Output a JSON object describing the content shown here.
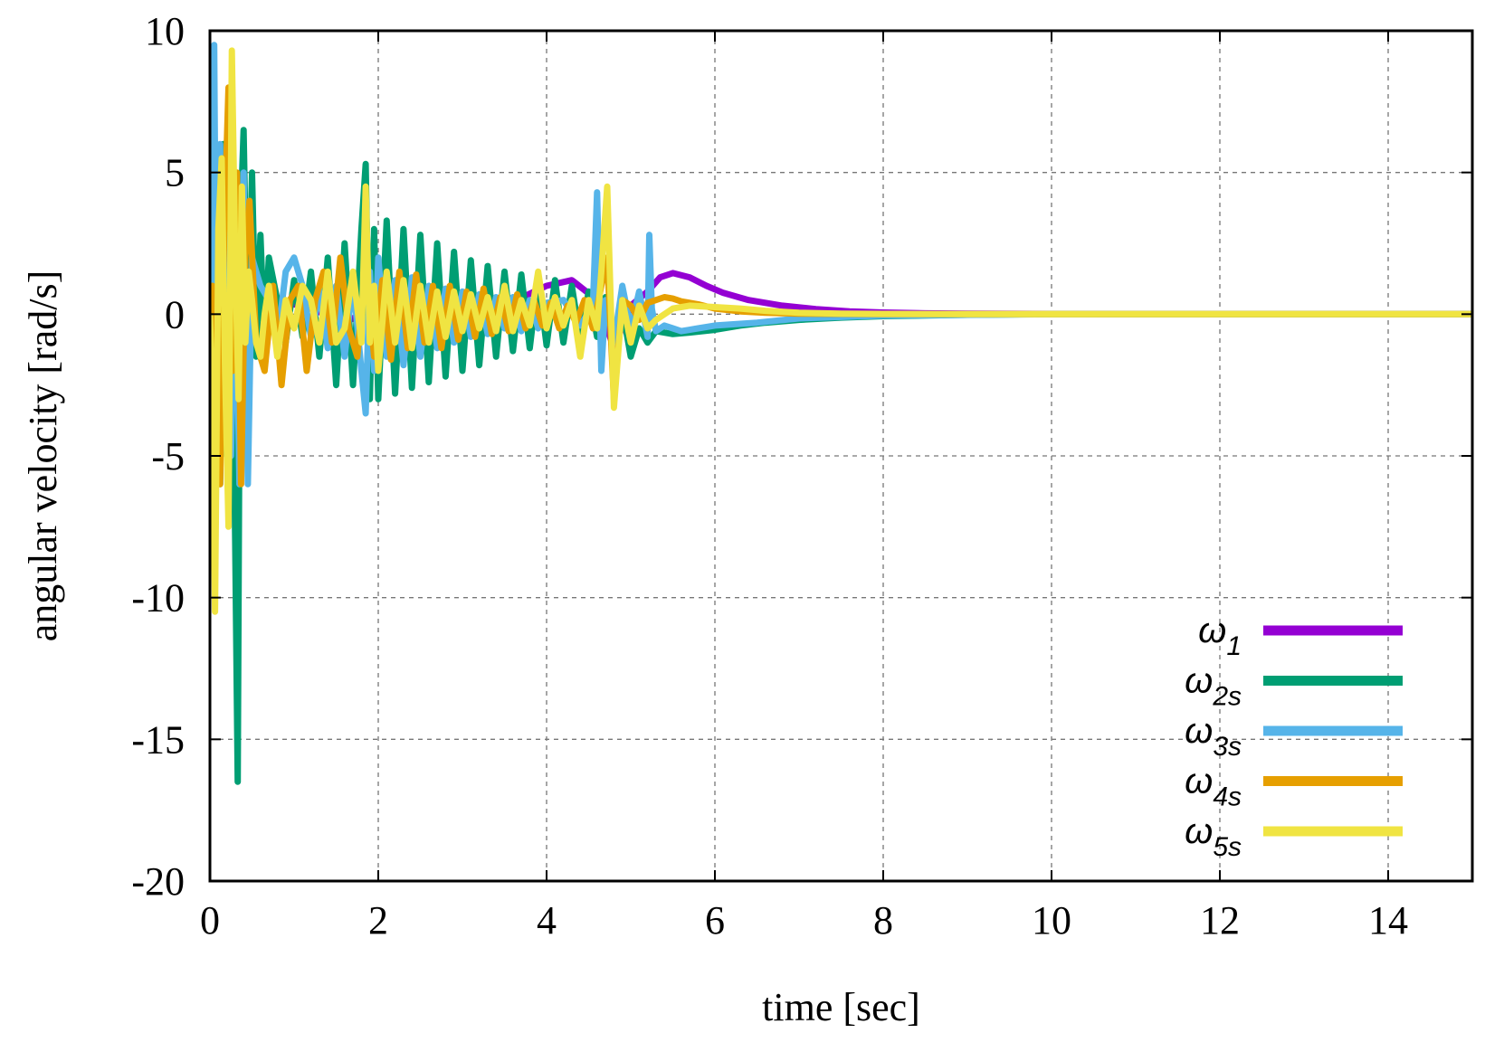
{
  "chart_data": {
    "type": "line",
    "title": "",
    "xlabel": "time [sec]",
    "ylabel": "angular velocity [rad/s]",
    "xlim": [
      0,
      15
    ],
    "ylim": [
      -20,
      10
    ],
    "xticks": [
      0,
      2,
      4,
      6,
      8,
      10,
      12,
      14
    ],
    "yticks": [
      -20,
      -15,
      -10,
      -5,
      0,
      5,
      10
    ],
    "grid": true,
    "legend_position": "bottom-right",
    "series": [
      {
        "name": "ω1",
        "base": "ω",
        "sub": "1",
        "color": "#9400d3",
        "x": [
          0,
          0.02,
          0.05,
          0.1,
          0.2,
          0.3,
          0.5,
          0.8,
          1.2,
          1.6,
          2.0,
          2.5,
          3.0,
          3.5,
          4.0,
          4.3,
          4.6,
          4.8,
          5.0,
          5.2,
          5.35,
          5.5,
          5.7,
          5.9,
          6.1,
          6.4,
          6.8,
          7.2,
          7.6,
          8.0,
          8.5,
          9.0,
          10,
          11,
          12,
          13,
          14,
          15
        ],
        "y": [
          0,
          2,
          -2,
          1.5,
          -1,
          2,
          -1,
          0.5,
          0.2,
          -0.3,
          0.3,
          0.1,
          -0.2,
          0.3,
          1.0,
          1.2,
          0.5,
          -1.2,
          0.3,
          0.8,
          1.3,
          1.45,
          1.3,
          1.0,
          0.75,
          0.5,
          0.3,
          0.18,
          0.1,
          0.06,
          0.03,
          0.02,
          0.01,
          0,
          0,
          0,
          0,
          0
        ]
      },
      {
        "name": "ω2s",
        "base": "ω",
        "sub": "2s",
        "color": "#009e73",
        "x": [
          0,
          0.02,
          0.05,
          0.08,
          0.12,
          0.16,
          0.2,
          0.25,
          0.3,
          0.33,
          0.36,
          0.4,
          0.45,
          0.5,
          0.55,
          0.6,
          0.65,
          0.7,
          0.8,
          0.9,
          1.0,
          1.1,
          1.2,
          1.3,
          1.4,
          1.5,
          1.6,
          1.7,
          1.8,
          1.85,
          1.9,
          1.95,
          2.0,
          2.1,
          2.2,
          2.3,
          2.4,
          2.5,
          2.6,
          2.7,
          2.8,
          2.9,
          3.0,
          3.1,
          3.2,
          3.3,
          3.4,
          3.5,
          3.6,
          3.7,
          3.8,
          3.9,
          4.0,
          4.1,
          4.2,
          4.3,
          4.4,
          4.5,
          4.6,
          4.7,
          4.8,
          4.9,
          5.0,
          5.1,
          5.2,
          5.3,
          5.5,
          5.7,
          6.0,
          6.3,
          6.6,
          7.0,
          7.5,
          8.0,
          9.0,
          10,
          12,
          15
        ],
        "y": [
          0,
          3,
          -4,
          5,
          -6,
          6,
          -5,
          4,
          -8,
          -16.5,
          3,
          6.5,
          -2,
          5,
          -1.5,
          2.8,
          -1,
          2,
          0.5,
          -1,
          1.2,
          -0.8,
          1.5,
          -1.5,
          2,
          -2.5,
          2.5,
          -2.5,
          3,
          5.3,
          -3,
          3,
          -3,
          3.3,
          -2.8,
          3,
          -2.6,
          2.8,
          -2.4,
          2.5,
          -2.2,
          2.2,
          -2,
          1.9,
          -1.8,
          1.7,
          -1.5,
          1.5,
          -1.3,
          1.4,
          -1.2,
          1.3,
          -1.1,
          1.2,
          -1.0,
          1.0,
          -0.9,
          0.8,
          -0.8,
          0.6,
          -0.6,
          0.2,
          -1.5,
          -0.5,
          -1.0,
          -0.6,
          -0.7,
          -0.65,
          -0.55,
          -0.4,
          -0.3,
          -0.2,
          -0.12,
          -0.07,
          -0.02,
          0,
          0,
          0
        ]
      },
      {
        "name": "ω3s",
        "base": "ω",
        "sub": "3s",
        "color": "#56b4e9",
        "x": [
          0,
          0.02,
          0.05,
          0.08,
          0.12,
          0.16,
          0.2,
          0.25,
          0.3,
          0.35,
          0.4,
          0.45,
          0.5,
          0.6,
          0.7,
          0.8,
          0.9,
          1.0,
          1.1,
          1.2,
          1.3,
          1.4,
          1.5,
          1.6,
          1.7,
          1.8,
          1.85,
          1.9,
          1.95,
          2.0,
          2.1,
          2.2,
          2.3,
          2.4,
          2.5,
          2.6,
          2.7,
          2.8,
          2.9,
          3.0,
          3.1,
          3.2,
          3.3,
          3.4,
          3.5,
          3.6,
          3.7,
          3.8,
          3.9,
          4.0,
          4.2,
          4.4,
          4.55,
          4.6,
          4.65,
          4.7,
          4.8,
          4.9,
          5.0,
          5.1,
          5.2,
          5.22,
          5.25,
          5.3,
          5.4,
          5.5,
          5.6,
          5.8,
          6.0,
          6.5,
          7.0,
          8.0,
          10,
          15
        ],
        "y": [
          0,
          4,
          9.5,
          -3,
          6,
          -2,
          4,
          -5,
          3,
          -6,
          5,
          -6,
          2,
          1,
          0.5,
          -1,
          1.5,
          2,
          1,
          -0.8,
          0.8,
          -1.2,
          1.0,
          -1.5,
          1.2,
          -2,
          -3.5,
          1.5,
          -2,
          2,
          -1.5,
          1.2,
          -1.8,
          1.3,
          -1.5,
          1.0,
          -1.2,
          0.9,
          -1.0,
          0.8,
          -0.8,
          0.7,
          -0.7,
          0.6,
          -0.5,
          0.6,
          -0.6,
          0.5,
          -0.5,
          0.4,
          0.5,
          -0.4,
          0.3,
          4.3,
          -2,
          0.5,
          -1,
          1.0,
          -0.5,
          0.8,
          -0.8,
          2.8,
          0.2,
          -0.6,
          -0.4,
          -0.5,
          -0.6,
          -0.5,
          -0.4,
          -0.3,
          -0.15,
          -0.05,
          0,
          0
        ]
      },
      {
        "name": "ω4s",
        "base": "ω",
        "sub": "4s",
        "color": "#e69f00",
        "x": [
          0,
          0.03,
          0.07,
          0.12,
          0.17,
          0.22,
          0.27,
          0.32,
          0.37,
          0.42,
          0.47,
          0.55,
          0.65,
          0.75,
          0.85,
          0.95,
          1.05,
          1.15,
          1.25,
          1.35,
          1.45,
          1.55,
          1.65,
          1.75,
          1.85,
          1.95,
          2.05,
          2.15,
          2.25,
          2.35,
          2.45,
          2.55,
          2.65,
          2.75,
          2.85,
          2.95,
          3.05,
          3.15,
          3.25,
          3.35,
          3.45,
          3.55,
          3.65,
          3.75,
          3.85,
          3.95,
          4.05,
          4.15,
          4.25,
          4.35,
          4.45,
          4.55,
          4.65,
          4.72,
          4.8,
          4.9,
          5.0,
          5.1,
          5.2,
          5.3,
          5.4,
          5.5,
          5.6,
          5.8,
          6.0,
          6.3,
          6.6,
          7.0,
          7.5,
          8.0,
          9.0,
          10,
          12,
          15
        ],
        "y": [
          0,
          1,
          -4,
          -6,
          3,
          8,
          -2,
          5,
          -6,
          2,
          4,
          -1,
          -2,
          1,
          -2.5,
          0.5,
          1,
          -2,
          0.5,
          1.5,
          -1,
          2,
          -0.5,
          -1.5,
          1.8,
          -1.5,
          1.2,
          -1.6,
          1.5,
          -1.2,
          1.4,
          -1.0,
          1.0,
          -1.2,
          1.0,
          -0.9,
          0.8,
          -0.8,
          0.9,
          -0.7,
          0.6,
          -0.6,
          0.7,
          -0.5,
          0.5,
          -0.4,
          0.4,
          -0.5,
          0.3,
          -0.3,
          0.5,
          -0.5,
          1.0,
          2.0,
          -3,
          0.5,
          0.3,
          -0.2,
          0.4,
          0.5,
          0.6,
          0.55,
          0.45,
          0.35,
          0.2,
          0.1,
          0.05,
          0.02,
          0.01,
          0,
          0,
          0,
          0,
          0
        ]
      },
      {
        "name": "ω5s",
        "base": "ω",
        "sub": "5s",
        "color": "#f0e442",
        "x": [
          0,
          0.03,
          0.06,
          0.1,
          0.14,
          0.18,
          0.22,
          0.26,
          0.3,
          0.34,
          0.38,
          0.42,
          0.46,
          0.5,
          0.55,
          0.6,
          0.65,
          0.7,
          0.8,
          0.9,
          1.0,
          1.1,
          1.2,
          1.3,
          1.4,
          1.5,
          1.6,
          1.7,
          1.8,
          1.85,
          1.9,
          1.95,
          2.0,
          2.1,
          2.2,
          2.3,
          2.4,
          2.5,
          2.6,
          2.7,
          2.8,
          2.9,
          3.0,
          3.1,
          3.2,
          3.3,
          3.4,
          3.5,
          3.6,
          3.7,
          3.8,
          3.9,
          4.0,
          4.1,
          4.2,
          4.3,
          4.4,
          4.5,
          4.6,
          4.65,
          4.72,
          4.8,
          4.9,
          5.0,
          5.1,
          5.2,
          5.3,
          5.5,
          5.7,
          6.0,
          6.3,
          6.6,
          7.0,
          7.5,
          8.0,
          9.0,
          10,
          12,
          15
        ],
        "y": [
          0,
          -3,
          -10.5,
          3,
          5.5,
          -2,
          -7.5,
          9.3,
          2,
          -3,
          4.5,
          -1,
          1.5,
          0.5,
          -1,
          -1.5,
          0,
          1.0,
          -1.5,
          0.5,
          -0.5,
          1.0,
          0.5,
          -1.0,
          1.5,
          -1.0,
          -0.5,
          1.5,
          -1.0,
          4.5,
          -1.0,
          1.0,
          -2.0,
          1.5,
          -1.0,
          1.2,
          -1.2,
          1.0,
          -1.0,
          0.8,
          -0.8,
          0.8,
          -0.6,
          0.7,
          -0.5,
          0.6,
          -0.6,
          1.0,
          -0.6,
          0.5,
          -0.4,
          1.5,
          -0.5,
          0.6,
          -0.4,
          0.5,
          -1.5,
          0.5,
          -0.5,
          1.5,
          4.5,
          -3.3,
          0.5,
          -1.0,
          0.3,
          -0.5,
          -0.2,
          0.2,
          0.3,
          0.25,
          0.2,
          0.12,
          0.05,
          0.02,
          0.01,
          0,
          0,
          0,
          0
        ]
      }
    ]
  }
}
